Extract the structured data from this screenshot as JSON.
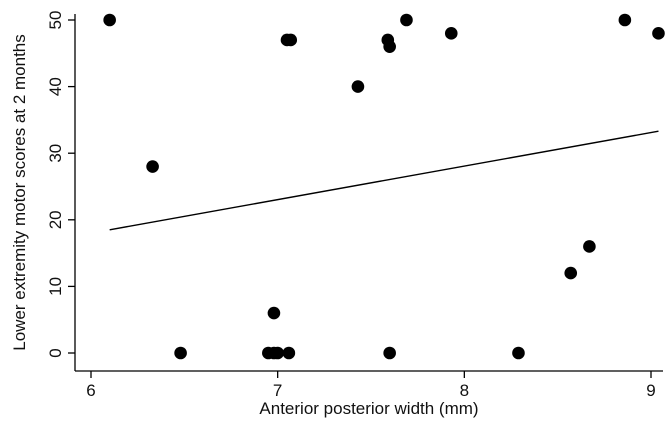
{
  "chart_data": {
    "type": "scatter",
    "title": "",
    "xlabel": "Anterior posterior width (mm)",
    "ylabel": "Lower extremity motor scores at 2 months",
    "xlim": [
      6,
      9
    ],
    "ylim": [
      0,
      50
    ],
    "x_ticks": [
      6,
      7,
      8,
      9
    ],
    "y_ticks": [
      0,
      10,
      20,
      30,
      40,
      50
    ],
    "x_tick_labels": [
      "6",
      "7",
      "8",
      "9"
    ],
    "y_tick_labels": [
      "0",
      "10",
      "20",
      "30",
      "40",
      "50"
    ],
    "grid": false,
    "legend": "none",
    "series": [
      {
        "kind": "points",
        "marker_color": "#000000",
        "x": [
          6.1,
          6.33,
          6.48,
          6.95,
          6.98,
          6.98,
          7.0,
          7.05,
          7.06,
          7.07,
          7.43,
          7.59,
          7.6,
          7.6,
          7.69,
          7.93,
          8.29,
          8.57,
          8.67,
          8.86,
          9.04
        ],
        "y": [
          50,
          28,
          0,
          0,
          6,
          0,
          0,
          47,
          0,
          47,
          40,
          47,
          46,
          0,
          50,
          48,
          0,
          12,
          16,
          50,
          48
        ]
      },
      {
        "kind": "fit-line",
        "line_color": "#000000",
        "x": [
          6.1,
          9.04
        ],
        "y": [
          18.5,
          33.3
        ]
      }
    ]
  }
}
